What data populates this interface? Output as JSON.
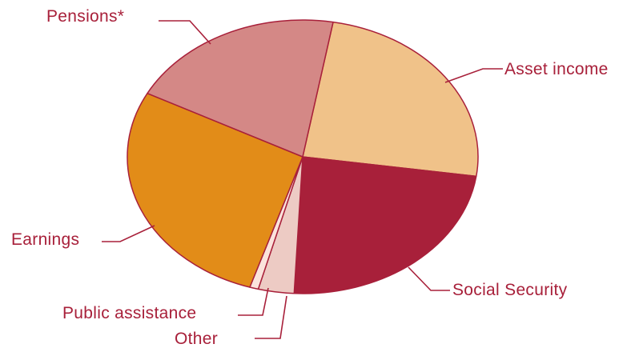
{
  "chart_data": {
    "type": "pie",
    "categories": [
      "Asset income",
      "Social Security",
      "Other",
      "Public assistance",
      "Earnings",
      "Pensions*"
    ],
    "values": [
      24.5,
      23.5,
      3.3,
      0.8,
      27.8,
      20.1
    ],
    "unit": "percent",
    "colors": [
      "#f0c289",
      "#a8203a",
      "#edcbc4",
      "#fbe3dc",
      "#e28c18",
      "#d48886"
    ],
    "title": "",
    "legend": "none (slices labeled with leader lines)"
  }
}
